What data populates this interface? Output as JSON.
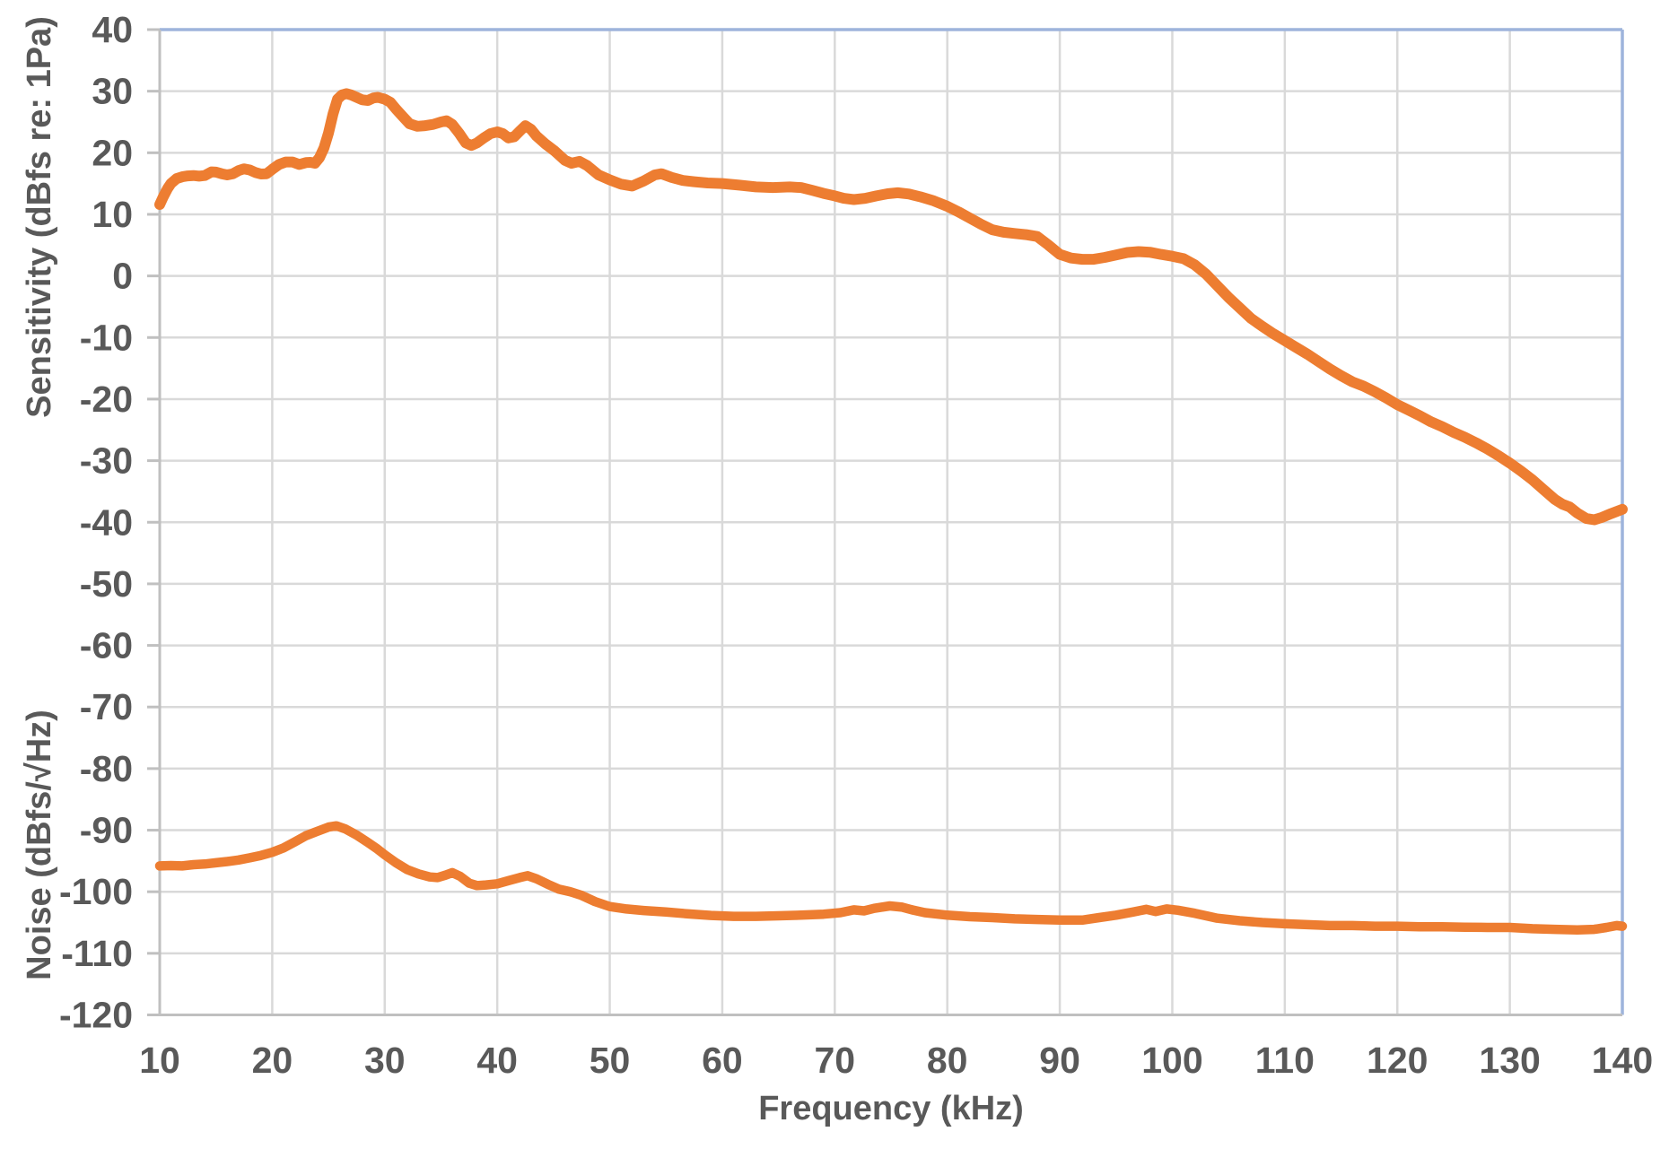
{
  "chart_data": {
    "type": "line",
    "title": "",
    "grid": true,
    "legend_position": "none",
    "x_axis": {
      "title": "Frequency (kHz)",
      "min": 10,
      "max": 140,
      "tick_step": 10,
      "ticks": [
        10,
        20,
        30,
        40,
        50,
        60,
        70,
        80,
        90,
        100,
        110,
        120,
        130,
        140
      ]
    },
    "y_axis": {
      "titles": [
        "Sensitivity (dBfs re: 1Pa)",
        "Noise (dBfs/√Hz)"
      ],
      "min": -120,
      "max": 40,
      "tick_step": 10,
      "ticks": [
        40,
        30,
        20,
        10,
        0,
        -10,
        -20,
        -30,
        -40,
        -50,
        -60,
        -70,
        -80,
        -90,
        -100,
        -110,
        -120
      ]
    },
    "style": {
      "series_color": "#ED7D31",
      "gridline_color": "#D9D9D9",
      "axis_color": "#C0C0C0",
      "border_color": "#9EB4DC",
      "text_color": "#595959",
      "background": "#FFFFFF"
    },
    "series": [
      {
        "name": "Sensitivity (dBfs re: 1Pa)",
        "units": "dBfs",
        "stroke_width": 12,
        "points": [
          [
            10,
            11.6
          ],
          [
            10.3,
            12.8
          ],
          [
            10.7,
            14.2
          ],
          [
            11,
            15.0
          ],
          [
            11.5,
            15.8
          ],
          [
            12,
            16.1
          ],
          [
            12.5,
            16.25
          ],
          [
            13,
            16.3
          ],
          [
            13.5,
            16.2
          ],
          [
            14,
            16.3
          ],
          [
            14.6,
            16.9
          ],
          [
            15,
            16.85
          ],
          [
            15.5,
            16.6
          ],
          [
            16,
            16.4
          ],
          [
            16.5,
            16.6
          ],
          [
            17,
            17.1
          ],
          [
            17.5,
            17.4
          ],
          [
            18,
            17.2
          ],
          [
            18.5,
            16.8
          ],
          [
            19,
            16.55
          ],
          [
            19.5,
            16.6
          ],
          [
            20,
            17.3
          ],
          [
            20.6,
            18.1
          ],
          [
            21.2,
            18.5
          ],
          [
            21.8,
            18.5
          ],
          [
            22.4,
            18.1
          ],
          [
            23,
            18.4
          ],
          [
            23.4,
            18.45
          ],
          [
            23.8,
            18.3
          ],
          [
            24.2,
            19.2
          ],
          [
            24.6,
            20.8
          ],
          [
            25,
            23.2
          ],
          [
            25.4,
            26.3
          ],
          [
            25.8,
            28.7
          ],
          [
            26.2,
            29.4
          ],
          [
            26.6,
            29.6
          ],
          [
            27,
            29.4
          ],
          [
            27.5,
            29.0
          ],
          [
            28,
            28.6
          ],
          [
            28.5,
            28.5
          ],
          [
            29,
            28.9
          ],
          [
            29.4,
            29.0
          ],
          [
            30,
            28.7
          ],
          [
            30.5,
            28.2
          ],
          [
            31,
            27.1
          ],
          [
            31.6,
            25.9
          ],
          [
            32.2,
            24.7
          ],
          [
            32.9,
            24.3
          ],
          [
            33.6,
            24.4
          ],
          [
            34.3,
            24.6
          ],
          [
            35,
            25.0
          ],
          [
            35.5,
            25.2
          ],
          [
            36,
            24.6
          ],
          [
            36.6,
            23.2
          ],
          [
            37.2,
            21.6
          ],
          [
            37.7,
            21.2
          ],
          [
            38.2,
            21.6
          ],
          [
            38.8,
            22.4
          ],
          [
            39.4,
            23.1
          ],
          [
            40,
            23.4
          ],
          [
            40.5,
            23.1
          ],
          [
            41,
            22.4
          ],
          [
            41.5,
            22.6
          ],
          [
            42,
            23.5
          ],
          [
            42.5,
            24.4
          ],
          [
            43,
            23.8
          ],
          [
            43.5,
            22.7
          ],
          [
            44.3,
            21.4
          ],
          [
            45.1,
            20.3
          ],
          [
            46,
            18.8
          ],
          [
            46.6,
            18.3
          ],
          [
            47.3,
            18.6
          ],
          [
            48,
            17.9
          ],
          [
            49,
            16.4
          ],
          [
            50,
            15.6
          ],
          [
            51,
            14.9
          ],
          [
            52,
            14.6
          ],
          [
            53,
            15.4
          ],
          [
            54,
            16.4
          ],
          [
            54.6,
            16.6
          ],
          [
            55.5,
            16.0
          ],
          [
            56.5,
            15.5
          ],
          [
            57.5,
            15.3
          ],
          [
            58.7,
            15.1
          ],
          [
            60,
            15.0
          ],
          [
            61.5,
            14.75
          ],
          [
            63,
            14.45
          ],
          [
            64.5,
            14.35
          ],
          [
            66,
            14.45
          ],
          [
            67,
            14.35
          ],
          [
            68,
            13.9
          ],
          [
            69,
            13.4
          ],
          [
            70,
            13.0
          ],
          [
            70.8,
            12.6
          ],
          [
            71.7,
            12.4
          ],
          [
            72.7,
            12.6
          ],
          [
            73.7,
            13.0
          ],
          [
            74.7,
            13.35
          ],
          [
            75.6,
            13.5
          ],
          [
            76.6,
            13.3
          ],
          [
            77.6,
            12.85
          ],
          [
            78.8,
            12.2
          ],
          [
            80,
            11.3
          ],
          [
            81,
            10.4
          ],
          [
            82,
            9.4
          ],
          [
            83,
            8.4
          ],
          [
            84,
            7.5
          ],
          [
            85,
            7.1
          ],
          [
            86,
            6.9
          ],
          [
            87,
            6.7
          ],
          [
            88,
            6.4
          ],
          [
            89,
            5.0
          ],
          [
            90,
            3.5
          ],
          [
            91,
            2.9
          ],
          [
            92,
            2.7
          ],
          [
            93,
            2.7
          ],
          [
            94,
            3.0
          ],
          [
            95,
            3.4
          ],
          [
            96,
            3.8
          ],
          [
            97,
            3.95
          ],
          [
            98,
            3.85
          ],
          [
            99,
            3.5
          ],
          [
            100,
            3.2
          ],
          [
            101,
            2.8
          ],
          [
            102,
            1.8
          ],
          [
            103,
            0.3
          ],
          [
            104,
            -1.6
          ],
          [
            105,
            -3.5
          ],
          [
            106,
            -5.2
          ],
          [
            107,
            -6.9
          ],
          [
            108,
            -8.2
          ],
          [
            109,
            -9.4
          ],
          [
            110,
            -10.5
          ],
          [
            111,
            -11.6
          ],
          [
            112,
            -12.7
          ],
          [
            113,
            -13.9
          ],
          [
            114,
            -15.1
          ],
          [
            115,
            -16.2
          ],
          [
            116,
            -17.2
          ],
          [
            117,
            -17.9
          ],
          [
            118,
            -18.8
          ],
          [
            119,
            -19.8
          ],
          [
            120,
            -20.9
          ],
          [
            121,
            -21.8
          ],
          [
            122,
            -22.7
          ],
          [
            123,
            -23.7
          ],
          [
            124,
            -24.5
          ],
          [
            125,
            -25.4
          ],
          [
            126,
            -26.2
          ],
          [
            127,
            -27.1
          ],
          [
            128,
            -28.1
          ],
          [
            129,
            -29.2
          ],
          [
            130,
            -30.4
          ],
          [
            131,
            -31.7
          ],
          [
            132,
            -33.1
          ],
          [
            133,
            -34.7
          ],
          [
            134,
            -36.3
          ],
          [
            134.7,
            -37.1
          ],
          [
            135.3,
            -37.5
          ],
          [
            136,
            -38.5
          ],
          [
            136.8,
            -39.4
          ],
          [
            137.5,
            -39.6
          ],
          [
            138.2,
            -39.2
          ],
          [
            139,
            -38.6
          ],
          [
            140,
            -37.9
          ]
        ]
      },
      {
        "name": "Noise (dBfs/√Hz)",
        "units": "dBfs/√Hz",
        "stroke_width": 10.5,
        "points": [
          [
            10,
            -95.8
          ],
          [
            11,
            -95.75
          ],
          [
            12,
            -95.8
          ],
          [
            13,
            -95.6
          ],
          [
            14,
            -95.5
          ],
          [
            15,
            -95.3
          ],
          [
            16,
            -95.1
          ],
          [
            17,
            -94.85
          ],
          [
            18,
            -94.5
          ],
          [
            19,
            -94.1
          ],
          [
            20,
            -93.6
          ],
          [
            21,
            -92.9
          ],
          [
            22,
            -91.9
          ],
          [
            23,
            -90.9
          ],
          [
            24,
            -90.2
          ],
          [
            25,
            -89.5
          ],
          [
            25.7,
            -89.3
          ],
          [
            26.5,
            -89.8
          ],
          [
            27.5,
            -90.8
          ],
          [
            28.5,
            -92.0
          ],
          [
            29.3,
            -93.0
          ],
          [
            30,
            -94.0
          ],
          [
            31,
            -95.3
          ],
          [
            32,
            -96.4
          ],
          [
            33,
            -97.1
          ],
          [
            34,
            -97.6
          ],
          [
            34.7,
            -97.7
          ],
          [
            35.4,
            -97.3
          ],
          [
            36,
            -96.9
          ],
          [
            36.7,
            -97.5
          ],
          [
            37.5,
            -98.6
          ],
          [
            38.2,
            -99.0
          ],
          [
            39,
            -98.9
          ],
          [
            40,
            -98.7
          ],
          [
            41,
            -98.2
          ],
          [
            42,
            -97.7
          ],
          [
            42.7,
            -97.4
          ],
          [
            43.5,
            -97.9
          ],
          [
            44.5,
            -98.8
          ],
          [
            45.5,
            -99.6
          ],
          [
            46.5,
            -100.0
          ],
          [
            47.5,
            -100.6
          ],
          [
            48.7,
            -101.6
          ],
          [
            50,
            -102.4
          ],
          [
            51.5,
            -102.8
          ],
          [
            53,
            -103.05
          ],
          [
            55,
            -103.3
          ],
          [
            57,
            -103.6
          ],
          [
            59,
            -103.85
          ],
          [
            61,
            -104.0
          ],
          [
            63,
            -104.0
          ],
          [
            65,
            -103.9
          ],
          [
            67,
            -103.8
          ],
          [
            69,
            -103.65
          ],
          [
            70.5,
            -103.4
          ],
          [
            71.7,
            -102.95
          ],
          [
            72.6,
            -103.1
          ],
          [
            73.5,
            -102.7
          ],
          [
            74.9,
            -102.3
          ],
          [
            76,
            -102.5
          ],
          [
            77,
            -103.0
          ],
          [
            78,
            -103.4
          ],
          [
            80,
            -103.8
          ],
          [
            82,
            -104.05
          ],
          [
            84,
            -104.2
          ],
          [
            86,
            -104.4
          ],
          [
            88,
            -104.5
          ],
          [
            90,
            -104.6
          ],
          [
            92,
            -104.6
          ],
          [
            93.5,
            -104.2
          ],
          [
            95,
            -103.8
          ],
          [
            96.5,
            -103.3
          ],
          [
            97.7,
            -102.85
          ],
          [
            98.5,
            -103.2
          ],
          [
            99.5,
            -102.8
          ],
          [
            100.5,
            -103.0
          ],
          [
            102,
            -103.5
          ],
          [
            104,
            -104.3
          ],
          [
            106,
            -104.7
          ],
          [
            108,
            -105.0
          ],
          [
            110,
            -105.2
          ],
          [
            112,
            -105.35
          ],
          [
            114,
            -105.5
          ],
          [
            116,
            -105.5
          ],
          [
            118,
            -105.6
          ],
          [
            120,
            -105.6
          ],
          [
            122,
            -105.7
          ],
          [
            124,
            -105.7
          ],
          [
            126,
            -105.75
          ],
          [
            128,
            -105.8
          ],
          [
            130,
            -105.8
          ],
          [
            132,
            -106.0
          ],
          [
            134,
            -106.1
          ],
          [
            136,
            -106.2
          ],
          [
            137.5,
            -106.1
          ],
          [
            138.6,
            -105.8
          ],
          [
            139.5,
            -105.5
          ],
          [
            140,
            -105.6
          ]
        ]
      }
    ]
  }
}
